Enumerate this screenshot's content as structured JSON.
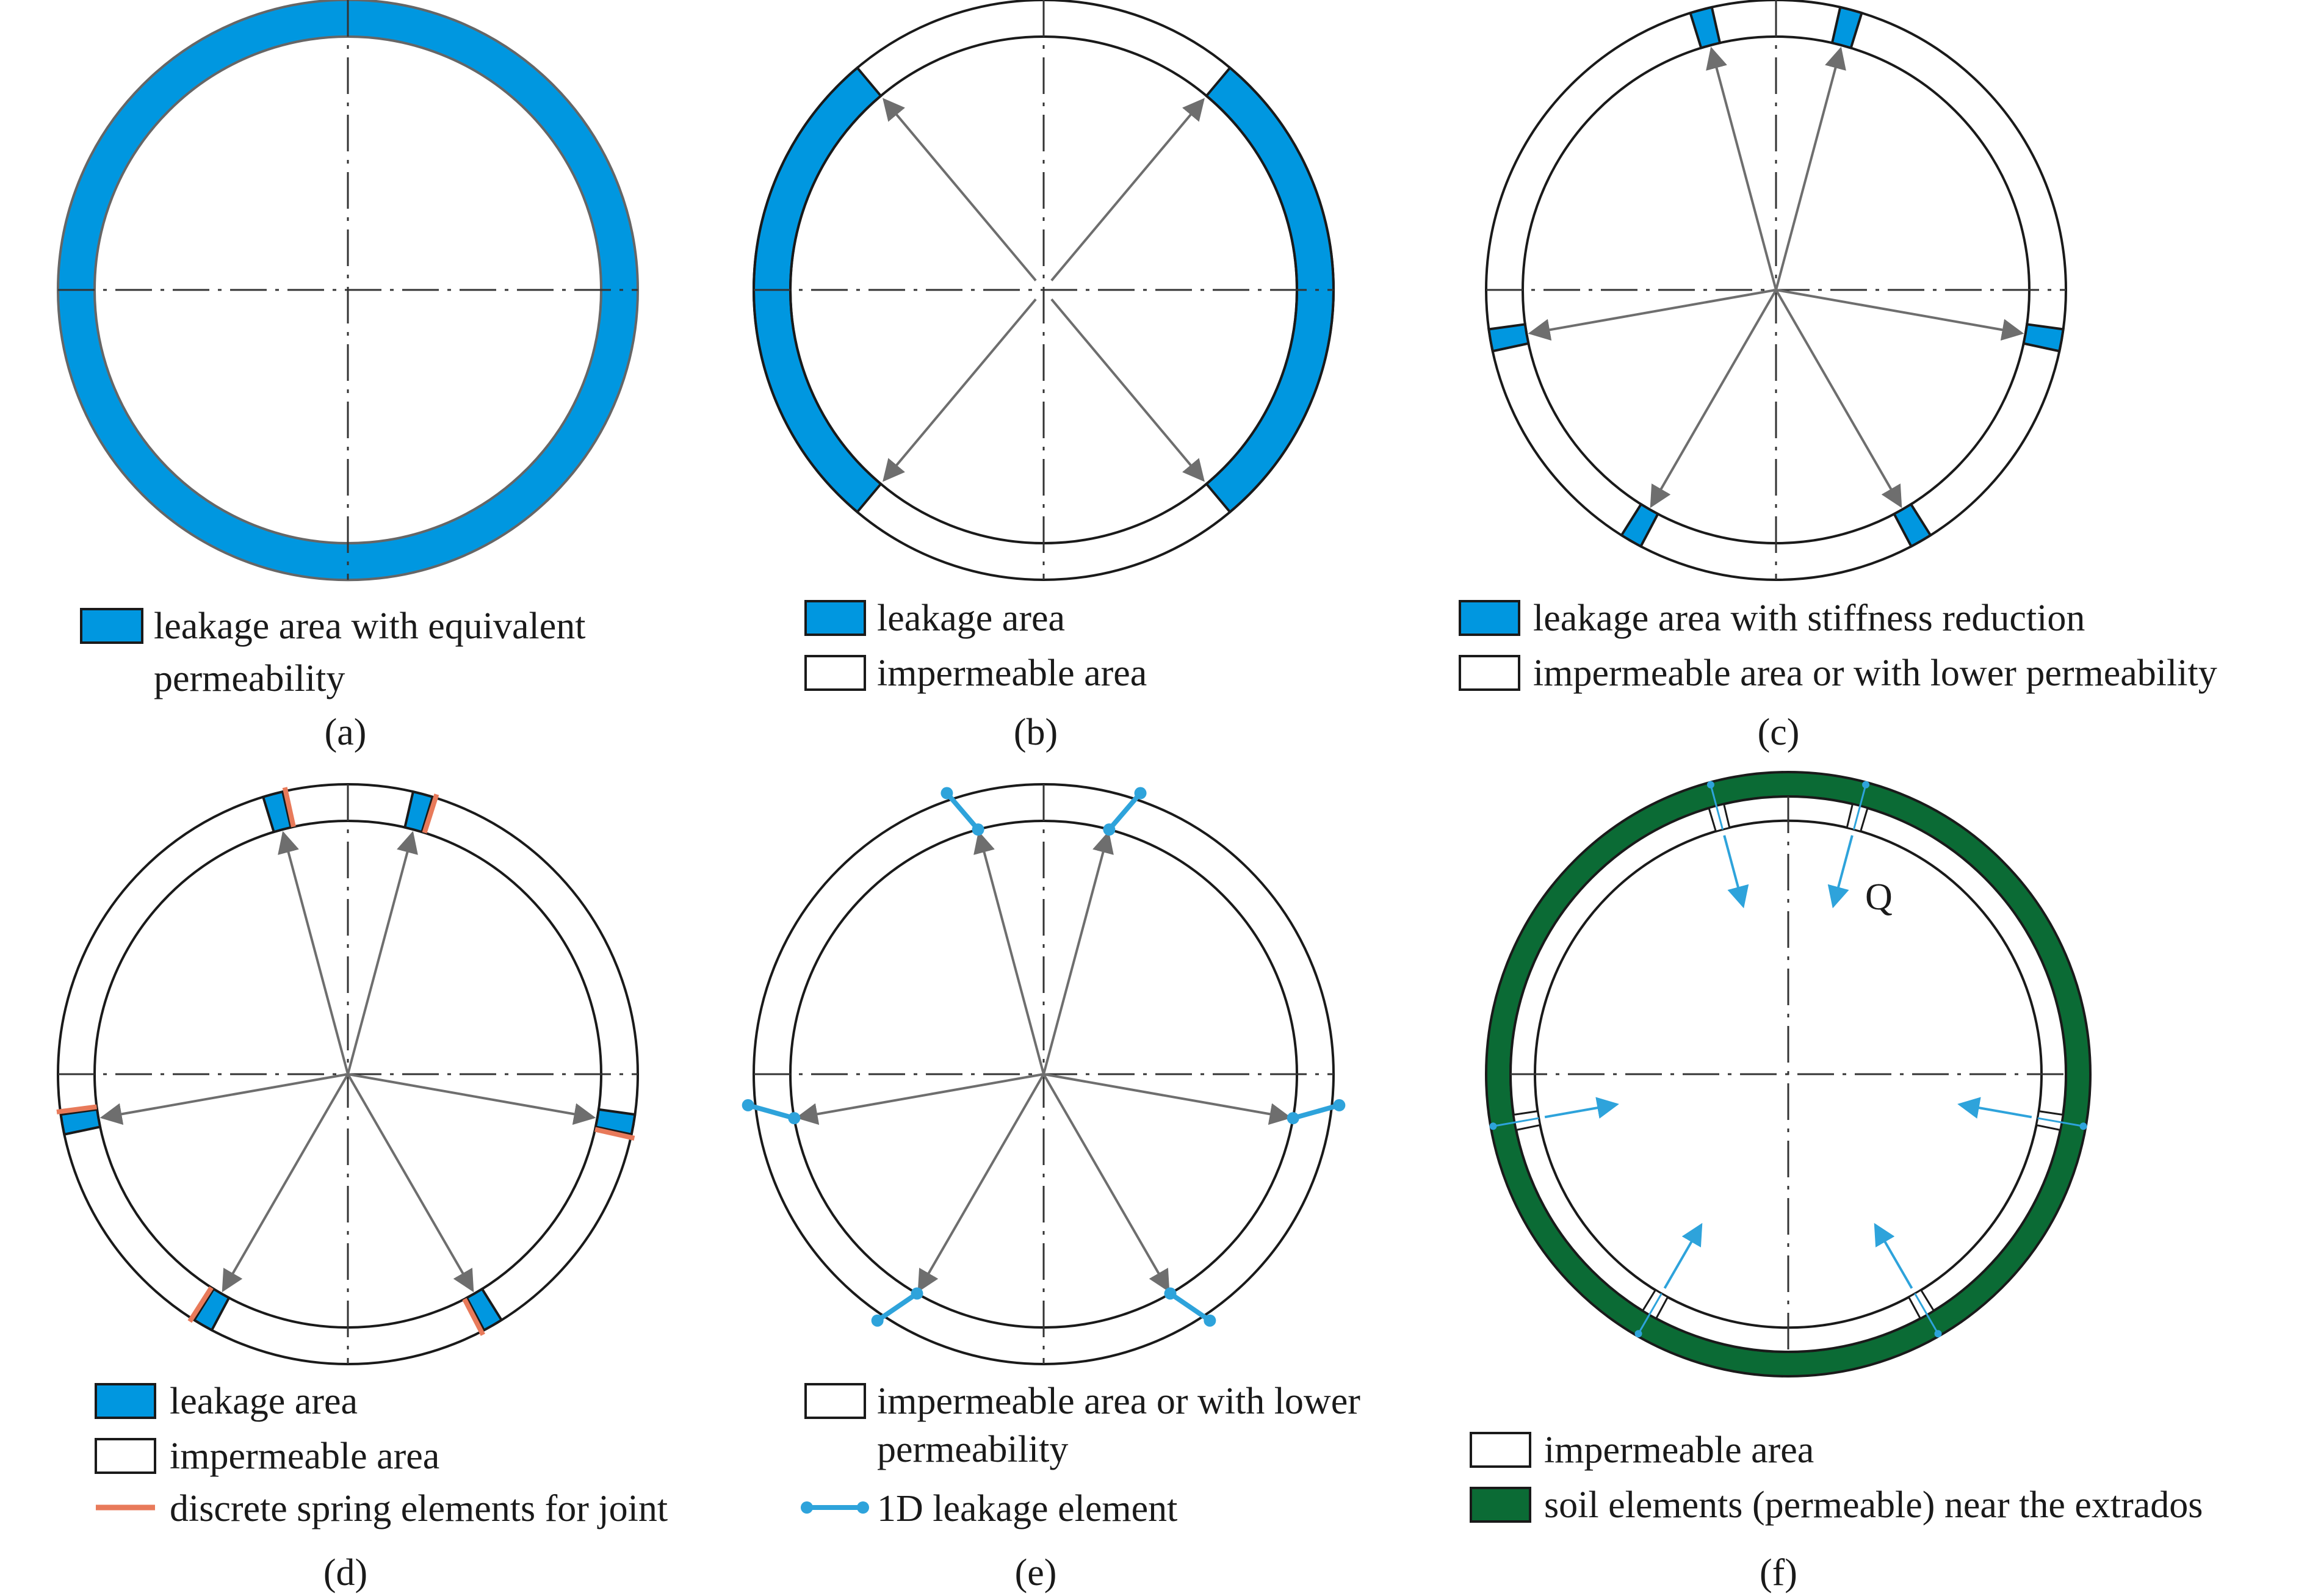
{
  "colors": {
    "leakage_blue": "#0097e0",
    "spring_orange": "#e87a5a",
    "element_blue": "#2ea3db",
    "soil_green": "#0b6b35",
    "arrow_gray": "#6e6e6e",
    "outline": "#1a1a1a"
  },
  "panels": [
    {
      "id": "a",
      "caption": "(a)",
      "legend": [
        {
          "symbol": "blue-box",
          "text": "leakage area with equivalent",
          "text2": "permeability"
        }
      ]
    },
    {
      "id": "b",
      "caption": "(b)",
      "legend": [
        {
          "symbol": "blue-box",
          "text": "leakage area"
        },
        {
          "symbol": "white-box",
          "text": "impermeable area"
        }
      ]
    },
    {
      "id": "c",
      "caption": "(c)",
      "legend": [
        {
          "symbol": "blue-box",
          "text": "leakage area with stiffness reduction"
        },
        {
          "symbol": "white-box",
          "text": "impermeable area or with lower permeability"
        }
      ]
    },
    {
      "id": "d",
      "caption": "(d)",
      "legend": [
        {
          "symbol": "blue-box",
          "text": "leakage area"
        },
        {
          "symbol": "white-box",
          "text": "impermeable area"
        },
        {
          "symbol": "orange-line",
          "text": "discrete spring elements for joint"
        }
      ]
    },
    {
      "id": "e",
      "caption": "(e)",
      "legend": [
        {
          "symbol": "white-box",
          "text": "impermeable area or with lower",
          "text2": "permeability"
        },
        {
          "symbol": "blue-element",
          "text": "1D leakage element"
        }
      ]
    },
    {
      "id": "f",
      "caption": "(f)",
      "q_label": "Q",
      "legend": [
        {
          "symbol": "white-box",
          "text": "impermeable area"
        },
        {
          "symbol": "green-box",
          "text": "soil elements (permeable) near the extrados"
        }
      ]
    }
  ],
  "joint_angles_deg": [
    -105,
    -75,
    10,
    170,
    60,
    120
  ],
  "panel_b_arcs_deg": [
    [
      -50,
      50
    ],
    [
      130,
      230
    ]
  ]
}
